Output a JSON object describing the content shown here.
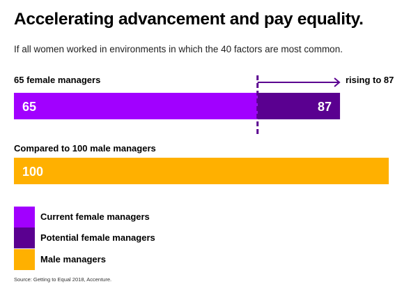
{
  "title": "Accelerating advancement and pay equality.",
  "subtitle": "If all women worked in environments in which the 40 factors are most common.",
  "chart_data": {
    "type": "bar",
    "orientation": "horizontal",
    "bars": [
      {
        "label": "65 female managers",
        "segments": [
          {
            "name": "Current female managers",
            "value": 65,
            "color": "#A100FF"
          },
          {
            "name": "Potential female managers",
            "value": 87,
            "color": "#5A0090"
          }
        ]
      },
      {
        "label": "Compared to 100 male managers",
        "segments": [
          {
            "name": "Male managers",
            "value": 100,
            "color": "#FFB000"
          }
        ]
      }
    ],
    "annotation": "rising to 87",
    "arrow_color": "#5A0090",
    "legend": [
      {
        "label": "Current female managers",
        "color": "#A100FF"
      },
      {
        "label": "Potential female managers",
        "color": "#5A0090"
      },
      {
        "label": "Male managers",
        "color": "#FFB000"
      }
    ],
    "legend_position": "bottom-left"
  },
  "source": "Source: Getting to Equal 2018, Accenture."
}
